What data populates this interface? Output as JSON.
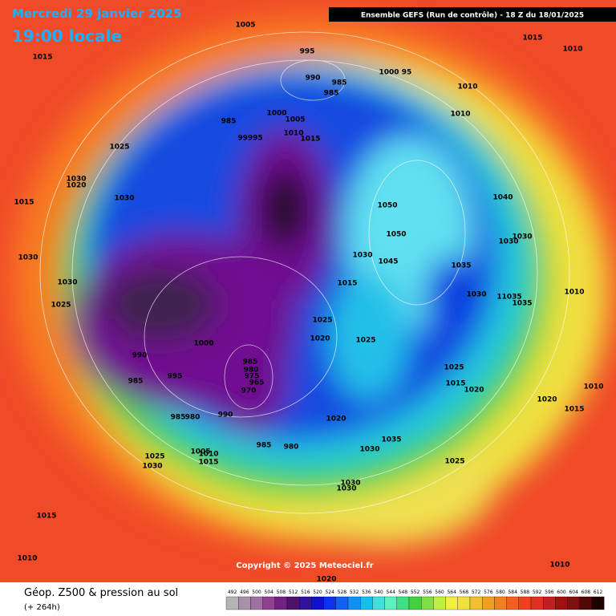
{
  "header": {
    "date": "Mercredi 29 janvier 2025",
    "time": "19:00 locale",
    "run": "Ensemble GEFS  (Run de contrôle)  -  18 Z du 18/01/2025"
  },
  "map": {
    "pressure_labels": [
      "1005",
      "995",
      "990",
      "985",
      "985",
      "1000",
      "95",
      "1010",
      "1010",
      "1015",
      "1010",
      "1015",
      "985",
      "1000",
      "1005",
      "99995",
      "1010",
      "1015",
      "1025",
      "1020",
      "1030",
      "1015",
      "1030",
      "1040",
      "1050",
      "1050",
      "1030",
      "1030",
      "1030",
      "1030",
      "1045",
      "1035",
      "1015",
      "1030",
      "1030",
      "11035",
      "1035",
      "1010",
      "1025",
      "1025",
      "1020",
      "1025",
      "1000",
      "990",
      "985",
      "980",
      "975",
      "965",
      "970",
      "995",
      "985",
      "1025",
      "1015",
      "1020",
      "1020",
      "1010",
      "1015",
      "985",
      "980",
      "990",
      "1020",
      "1035",
      "985",
      "980",
      "1030",
      "1005",
      "1010",
      "1015",
      "1025",
      "1030",
      "1025",
      "1030",
      "1030",
      "1015",
      "1010",
      "1010",
      "1020"
    ],
    "copyright": "Copyright © 2025 Meteociel.fr"
  },
  "footer": {
    "title": "Géop. Z500 & pression au sol",
    "lead": "(+ 264h)"
  },
  "scale": {
    "values": [
      492,
      496,
      500,
      504,
      508,
      512,
      516,
      520,
      524,
      528,
      532,
      536,
      540,
      544,
      548,
      552,
      556,
      560,
      564,
      568,
      572,
      576,
      580,
      584,
      588,
      592,
      596,
      600,
      604,
      608,
      612
    ],
    "colors": [
      "#b4b4b4",
      "#a890a8",
      "#a070a0",
      "#904090",
      "#702080",
      "#501070",
      "#3010a0",
      "#1010d0",
      "#1030f0",
      "#1060f0",
      "#1090f0",
      "#10c0f0",
      "#40e0e0",
      "#60f0c0",
      "#40e080",
      "#40d040",
      "#80e040",
      "#c0f040",
      "#f0f040",
      "#f0e040",
      "#f0c030",
      "#f0a020",
      "#f08020",
      "#f06020",
      "#f04020",
      "#e03020",
      "#c02020",
      "#a01010",
      "#801010",
      "#500808",
      "#200000"
    ]
  }
}
